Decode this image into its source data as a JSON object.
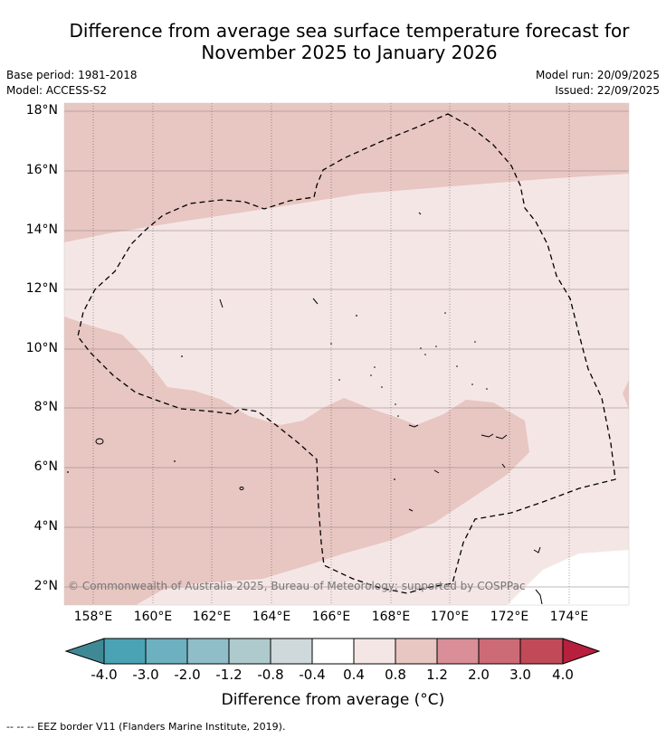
{
  "title_line1": "Difference from average sea surface temperature forecast for",
  "title_line2": "November 2025 to January 2026",
  "meta": {
    "base_period": "Base period: 1981-2018",
    "model": "Model: ACCESS-S2",
    "model_run": "Model run: 20/09/2025",
    "issued": "Issued: 22/09/2025"
  },
  "map": {
    "lat_labels": [
      "18°N",
      "16°N",
      "14°N",
      "12°N",
      "10°N",
      "8°N",
      "6°N",
      "4°N",
      "2°N"
    ],
    "lon_labels": [
      "158°E",
      "160°E",
      "162°E",
      "164°E",
      "166°E",
      "168°E",
      "170°E",
      "172°E",
      "174°E"
    ],
    "copyright": "© Commonwealth of Australia 2025, Bureau of Meteorology; supported by COSPPac"
  },
  "colorbar": {
    "ticks": [
      "-4.0",
      "-3.0",
      "-2.0",
      "-1.2",
      "-0.8",
      "-0.4",
      "0.4",
      "0.8",
      "1.2",
      "2.0",
      "3.0",
      "4.0"
    ],
    "colors": [
      "#4aa3b5",
      "#6db0c0",
      "#8fbdc8",
      "#aecacd",
      "#cfd9db",
      "#ffffff",
      "#f5e6e6",
      "#e8c6c2",
      "#d98e98",
      "#cc6a76",
      "#c14a58"
    ],
    "under_color": "#3f8995",
    "over_color": "#b81f3c",
    "label": "Difference from average (°C)"
  },
  "legend": {
    "eez_note": "--  --  -- EEZ border V11 (Flanders Marine Institute, 2019)."
  }
}
